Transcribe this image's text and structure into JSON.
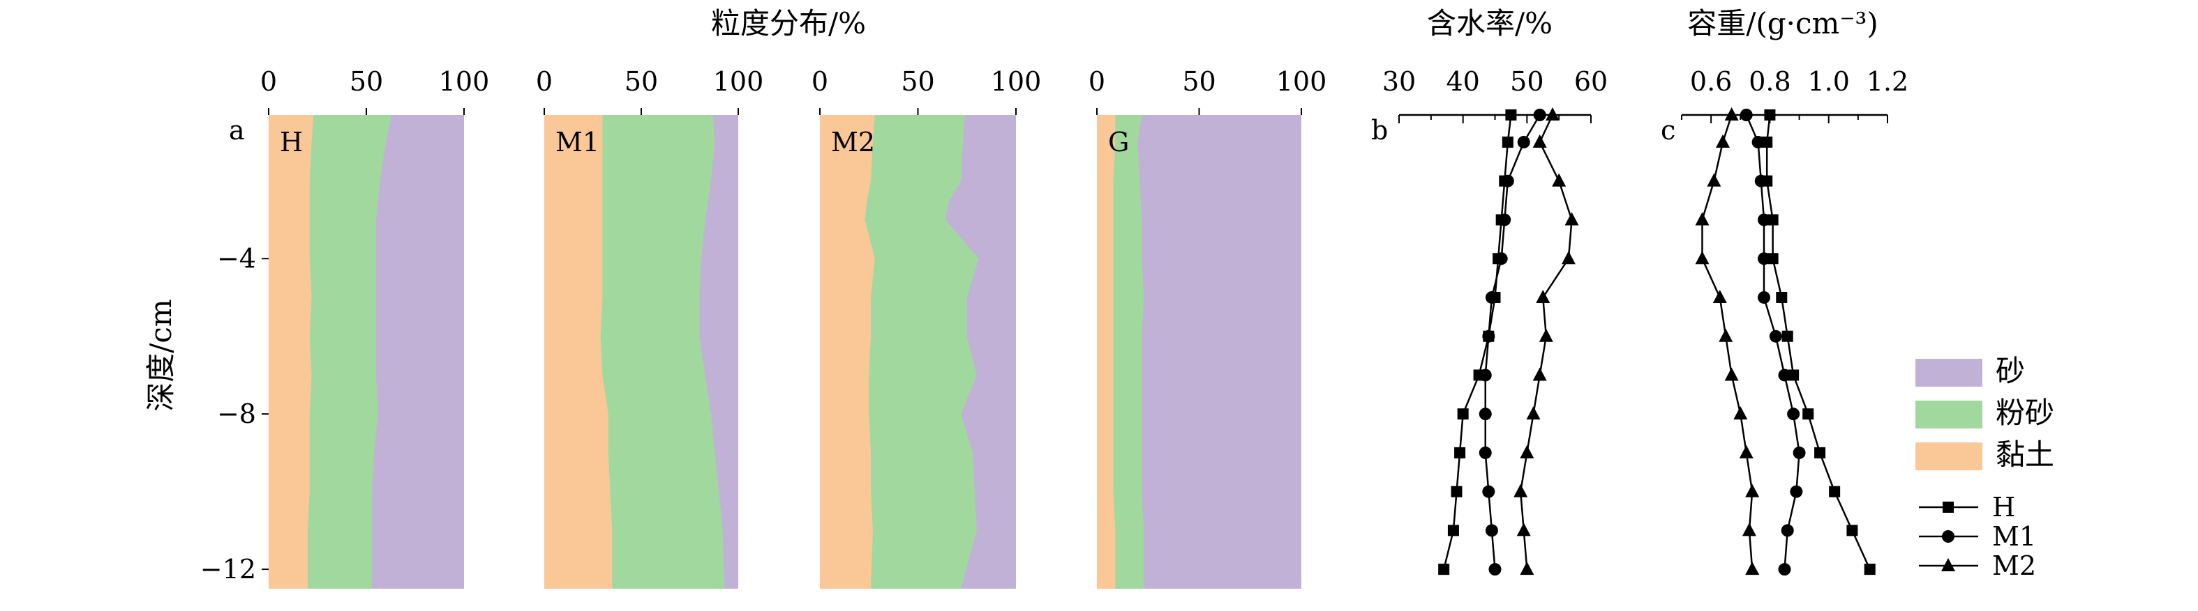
{
  "colors": {
    "clay": "#F9C896",
    "silt": "#A0D89E",
    "sand": "#C1B1D6",
    "axis": "#000000"
  },
  "titles": {
    "grain": "粒度分布/%",
    "water": "含水率/%",
    "density": "容重/(g·cm⁻³)",
    "depth": "深度/cm"
  },
  "panel_labels": {
    "a": "a",
    "b": "b",
    "c": "c"
  },
  "y_ticks": [
    {
      "v": -4,
      "label": "−4"
    },
    {
      "v": -8,
      "label": "−8"
    },
    {
      "v": -12,
      "label": "−12"
    }
  ],
  "legend": {
    "areas": [
      {
        "key": "sand",
        "label": "砂"
      },
      {
        "key": "silt",
        "label": "粉砂"
      },
      {
        "key": "clay",
        "label": "黏土"
      }
    ],
    "lines": [
      {
        "label": "H",
        "marker": "square"
      },
      {
        "label": "M1",
        "marker": "circle"
      },
      {
        "label": "M2",
        "marker": "triangle"
      }
    ]
  },
  "chart_data": [
    {
      "type": "area",
      "site": "H",
      "title": "粒度分布/%",
      "xlim": [
        0,
        100
      ],
      "x_ticks": [
        "0",
        "50",
        "100"
      ],
      "ylim": [
        -12.5,
        -0.3
      ],
      "depth": [
        -0.3,
        -1,
        -2,
        -3,
        -4,
        -5,
        -6,
        -7,
        -8,
        -9,
        -10,
        -11,
        -12.5
      ],
      "clay": [
        23,
        22,
        21,
        21,
        21,
        22,
        21,
        22,
        21,
        21,
        21,
        20,
        20
      ],
      "clay_plus_silt": [
        63,
        60,
        57,
        55,
        55,
        55,
        55,
        55,
        56,
        54,
        53,
        53,
        53
      ]
    },
    {
      "type": "area",
      "site": "M1",
      "title": "",
      "xlim": [
        0,
        100
      ],
      "x_ticks": [
        "0",
        "50",
        "100"
      ],
      "ylim": [
        -12.5,
        -0.3
      ],
      "depth": [
        -0.3,
        -1,
        -2,
        -3,
        -4,
        -5,
        -6,
        -7,
        -8,
        -9,
        -10,
        -11,
        -12.5
      ],
      "clay": [
        30,
        30,
        30,
        30,
        30,
        30,
        29,
        30,
        33,
        33,
        34,
        35,
        35
      ],
      "clay_plus_silt": [
        87,
        88,
        86,
        83,
        81,
        80,
        80,
        83,
        86,
        88,
        90,
        92,
        93
      ]
    },
    {
      "type": "area",
      "site": "M2",
      "title": "",
      "xlim": [
        0,
        100
      ],
      "x_ticks": [
        "0",
        "50",
        "100"
      ],
      "ylim": [
        -12.5,
        -0.3
      ],
      "depth": [
        -0.3,
        -1,
        -2,
        -2.5,
        -3,
        -4,
        -5,
        -6,
        -7,
        -8,
        -9,
        -10,
        -11,
        -12.5
      ],
      "clay": [
        28,
        27,
        26,
        24,
        23,
        28,
        26,
        26,
        25,
        25,
        26,
        26,
        27,
        26
      ],
      "clay_plus_silt": [
        74,
        73,
        72,
        66,
        64,
        81,
        75,
        75,
        80,
        72,
        78,
        79,
        80,
        72
      ]
    },
    {
      "type": "area",
      "site": "G",
      "title": "",
      "xlim": [
        0,
        100
      ],
      "x_ticks": [
        "0",
        "50",
        "100"
      ],
      "ylim": [
        -12.5,
        -0.3
      ],
      "depth": [
        -0.3,
        -1,
        -2,
        -3,
        -4,
        -5,
        -6,
        -7,
        -8,
        -9,
        -10,
        -11,
        -12.5
      ],
      "clay": [
        9,
        9,
        8,
        8,
        8,
        8,
        8,
        8,
        8,
        8,
        8,
        9,
        9
      ],
      "clay_plus_silt": [
        22,
        20,
        21,
        22,
        22,
        23,
        22,
        22,
        22,
        22,
        22,
        23,
        23
      ]
    },
    {
      "type": "line",
      "title": "含水率/%",
      "xlim": [
        30,
        60
      ],
      "x_ticks": [
        "30",
        "40",
        "50",
        "60"
      ],
      "ylim": [
        -12.5,
        -0.3
      ],
      "y": [
        -0.3,
        -1,
        -2,
        -3,
        -4,
        -5,
        -6,
        -7,
        -8,
        -9,
        -10,
        -11,
        -12
      ],
      "series": [
        {
          "name": "H",
          "marker": "square",
          "values": [
            47.5,
            47,
            46.5,
            46,
            45.5,
            45,
            44,
            42.5,
            40,
            39.5,
            39,
            38.5,
            37
          ]
        },
        {
          "name": "M1",
          "marker": "circle",
          "values": [
            52,
            49.5,
            47,
            46.5,
            46,
            44.5,
            44,
            43.5,
            43.5,
            43.5,
            44,
            44.5,
            45
          ]
        },
        {
          "name": "M2",
          "marker": "triangle",
          "values": [
            54,
            52,
            55,
            57,
            56.5,
            52.5,
            53,
            52,
            51,
            50,
            49,
            49.5,
            50
          ]
        }
      ]
    },
    {
      "type": "line",
      "title": "容重/(g·cm⁻³)",
      "xlim": [
        0.5,
        1.2
      ],
      "x_ticks": [
        "0.6",
        "0.8",
        "1.0",
        "1.2"
      ],
      "ylim": [
        -12.5,
        -0.3
      ],
      "y": [
        -0.3,
        -1,
        -2,
        -3,
        -4,
        -5,
        -6,
        -7,
        -8,
        -9,
        -10,
        -11,
        -12
      ],
      "series": [
        {
          "name": "H",
          "marker": "square",
          "values": [
            0.8,
            0.79,
            0.79,
            0.81,
            0.81,
            0.84,
            0.86,
            0.88,
            0.93,
            0.97,
            1.02,
            1.08,
            1.14
          ]
        },
        {
          "name": "M1",
          "marker": "circle",
          "values": [
            0.72,
            0.76,
            0.77,
            0.78,
            0.78,
            0.78,
            0.82,
            0.85,
            0.88,
            0.9,
            0.89,
            0.86,
            0.85
          ]
        },
        {
          "name": "M2",
          "marker": "triangle",
          "values": [
            0.67,
            0.64,
            0.61,
            0.57,
            0.57,
            0.63,
            0.65,
            0.67,
            0.7,
            0.72,
            0.74,
            0.73,
            0.74
          ]
        }
      ]
    }
  ]
}
